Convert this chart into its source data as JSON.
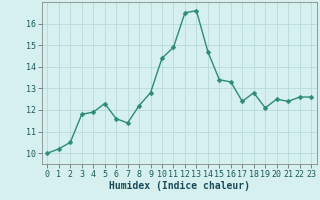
{
  "x": [
    0,
    1,
    2,
    3,
    4,
    5,
    6,
    7,
    8,
    9,
    10,
    11,
    12,
    13,
    14,
    15,
    16,
    17,
    18,
    19,
    20,
    21,
    22,
    23
  ],
  "y": [
    10.0,
    10.2,
    10.5,
    11.8,
    11.9,
    12.3,
    11.6,
    11.4,
    12.2,
    12.8,
    14.4,
    14.9,
    16.5,
    16.6,
    14.7,
    13.4,
    13.3,
    12.4,
    12.8,
    12.1,
    12.5,
    12.4,
    12.6,
    12.6
  ],
  "line_color": "#2d8b7a",
  "marker_color": "#2d8b7a",
  "bg_color": "#d5f0ee",
  "grid_color": "#b8dbd8",
  "xlabel": "Humidex (Indice chaleur)",
  "ylim": [
    9.5,
    17.0
  ],
  "xlim": [
    -0.5,
    23.5
  ],
  "yticks": [
    10,
    11,
    12,
    13,
    14,
    15,
    16
  ],
  "xticks": [
    0,
    1,
    2,
    3,
    4,
    5,
    6,
    7,
    8,
    9,
    10,
    11,
    12,
    13,
    14,
    15,
    16,
    17,
    18,
    19,
    20,
    21,
    22,
    23
  ],
  "xtick_labels": [
    "0",
    "1",
    "2",
    "3",
    "4",
    "5",
    "6",
    "7",
    "8",
    "9",
    "10",
    "11",
    "12",
    "13",
    "14",
    "15",
    "16",
    "17",
    "18",
    "19",
    "20",
    "21",
    "22",
    "23"
  ],
  "tick_fontsize": 6,
  "xlabel_fontsize": 7,
  "marker_size": 2.5,
  "line_width": 1.0
}
